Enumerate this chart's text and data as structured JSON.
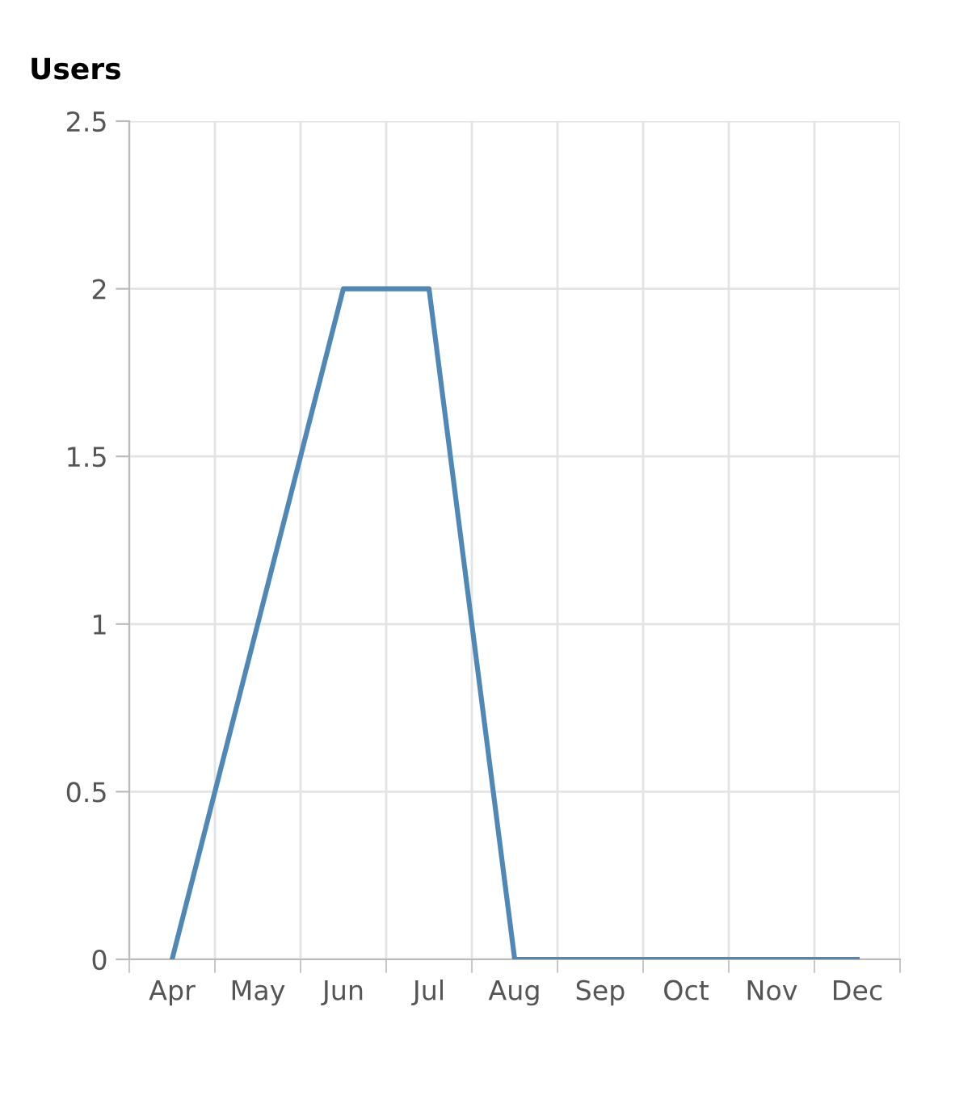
{
  "chart_data": {
    "type": "line",
    "title": "Users",
    "categories": [
      "Apr",
      "May",
      "Jun",
      "Jul",
      "Aug",
      "Sep",
      "Oct",
      "Nov",
      "Dec"
    ],
    "series": [
      {
        "color": "#4f88b6",
        "values": [
          0,
          1,
          2,
          2,
          0,
          0,
          0,
          0,
          0
        ]
      }
    ],
    "ylim": [
      0,
      2.5
    ],
    "yticks": [
      0,
      0.5,
      1,
      1.5,
      2,
      2.5
    ],
    "grid": true,
    "marker": "none",
    "line_style": "solid"
  }
}
